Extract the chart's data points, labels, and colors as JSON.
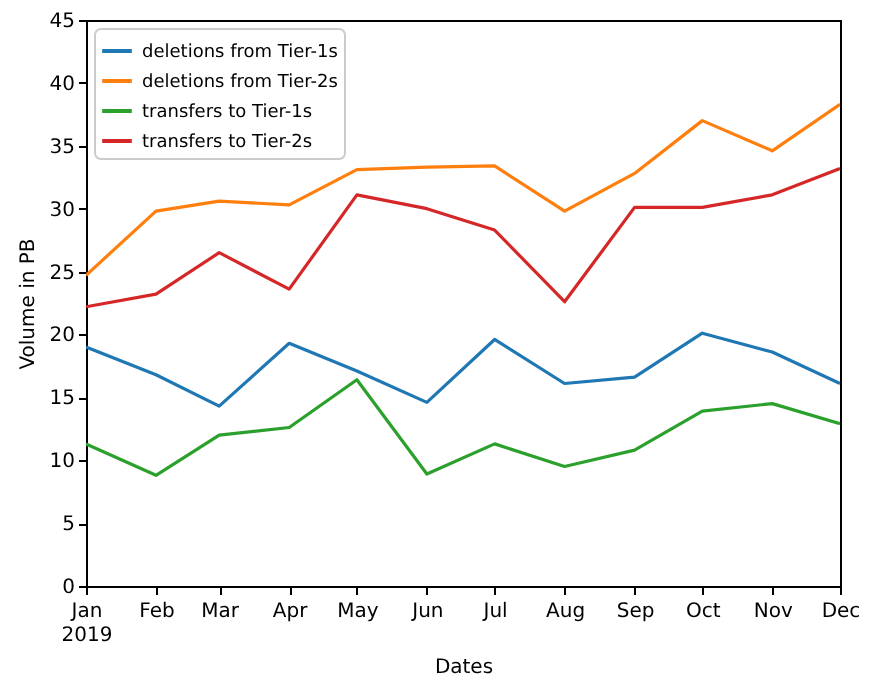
{
  "chart_data": {
    "type": "line",
    "xlabel": "Dates",
    "ylabel": "Volume in PB",
    "x": [
      "2019-01",
      "2019-02",
      "2019-03",
      "2019-04",
      "2019-05",
      "2019-06",
      "2019-07",
      "2019-08",
      "2019-09",
      "2019-10",
      "2019-11",
      "2019-12"
    ],
    "xlim": [
      "2019-01",
      "2019-12"
    ],
    "xticks": [
      {
        "value": "2019-01",
        "label": "Jan\n2019"
      },
      {
        "value": "2019-02",
        "label": "Feb"
      },
      {
        "value": "2019-03",
        "label": "Mar"
      },
      {
        "value": "2019-04",
        "label": "Apr"
      },
      {
        "value": "2019-05",
        "label": "May"
      },
      {
        "value": "2019-06",
        "label": "Jun"
      },
      {
        "value": "2019-07",
        "label": "Jul"
      },
      {
        "value": "2019-08",
        "label": "Aug"
      },
      {
        "value": "2019-09",
        "label": "Sep"
      },
      {
        "value": "2019-10",
        "label": "Oct"
      },
      {
        "value": "2019-11",
        "label": "Nov"
      },
      {
        "value": "2019-12",
        "label": "Dec"
      }
    ],
    "ylim": [
      0,
      45
    ],
    "yticks": [
      0,
      5,
      10,
      15,
      20,
      25,
      30,
      35,
      40,
      45
    ],
    "legend": "top left",
    "series": [
      {
        "name": "deletions from Tier-1s",
        "color": "#1f77b4",
        "values": [
          19.0,
          16.8,
          14.3,
          19.3,
          17.1,
          14.6,
          19.6,
          16.1,
          16.6,
          20.1,
          18.6,
          16.1
        ]
      },
      {
        "name": "deletions from Tier-2s",
        "color": "#ff7f0e",
        "values": [
          24.7,
          29.8,
          30.6,
          30.3,
          33.1,
          33.3,
          33.4,
          29.8,
          32.8,
          37.0,
          34.6,
          38.3
        ]
      },
      {
        "name": "transfers to Tier-1s",
        "color": "#2ca02c",
        "values": [
          11.3,
          8.8,
          12.0,
          12.6,
          16.4,
          8.9,
          11.3,
          9.5,
          10.8,
          13.9,
          14.5,
          12.9
        ]
      },
      {
        "name": "transfers to Tier-2s",
        "color": "#d62728",
        "values": [
          22.2,
          23.2,
          26.5,
          23.6,
          31.1,
          30.0,
          28.3,
          22.6,
          30.1,
          30.1,
          31.1,
          33.2
        ]
      }
    ]
  }
}
